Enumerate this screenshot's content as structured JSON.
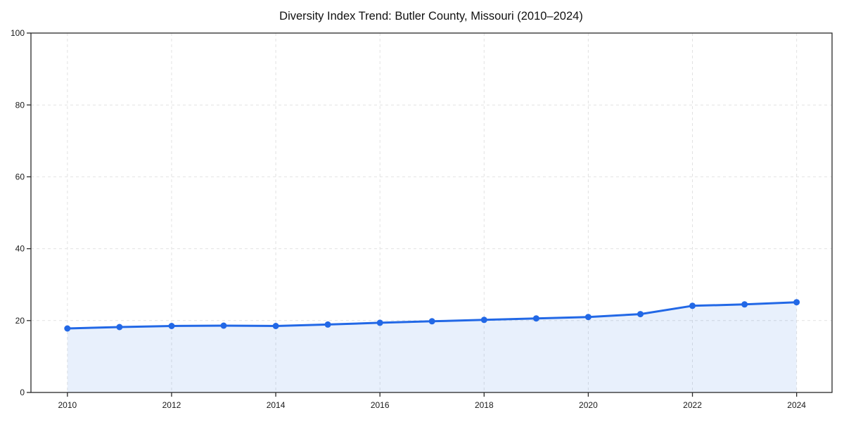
{
  "title": "Diversity Index Trend: Butler County, Missouri (2010–2024)",
  "chart_data": {
    "type": "area",
    "title": "Diversity Index Trend: Butler County, Missouri (2010–2024)",
    "xlabel": "",
    "ylabel": "",
    "x": [
      2010,
      2011,
      2012,
      2013,
      2014,
      2015,
      2016,
      2017,
      2018,
      2019,
      2020,
      2021,
      2022,
      2023,
      2024
    ],
    "series": [
      {
        "name": "Diversity Index",
        "values": [
          17.8,
          18.2,
          18.5,
          18.6,
          18.5,
          18.9,
          19.4,
          19.8,
          20.2,
          20.6,
          21.0,
          21.8,
          24.1,
          24.5,
          25.1
        ]
      }
    ],
    "xlim": [
      2009.3,
      2024.68
    ],
    "ylim": [
      0,
      100
    ],
    "xticks": [
      2010,
      2012,
      2014,
      2016,
      2018,
      2020,
      2022,
      2024
    ],
    "yticks": [
      0,
      20,
      40,
      60,
      80,
      100
    ],
    "grid": true,
    "grid_style": "dashed",
    "legend": "none",
    "marker": "circle",
    "colors": {
      "line": "#2268e6",
      "marker": "#2268e6",
      "fill": "rgba(34,104,230,0.10)",
      "grid": "#e2e2e2",
      "spine": "#2a2a2a",
      "tick": "#2a2a2a",
      "tick_label": "#1a1a1a",
      "title": "#111111",
      "background": "#ffffff"
    }
  }
}
